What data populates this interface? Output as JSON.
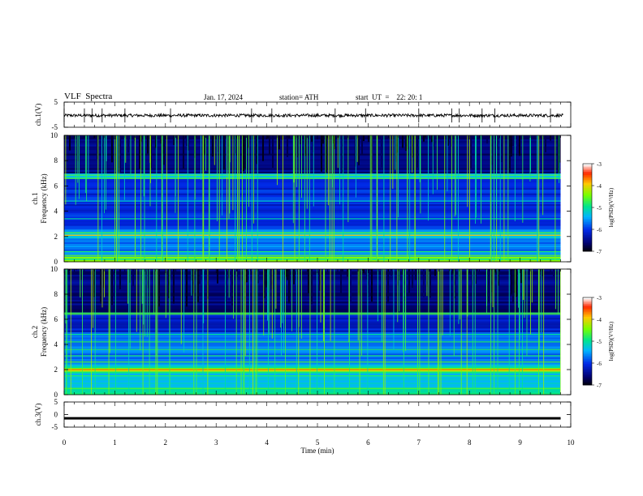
{
  "header": {
    "title": "VLF  Spectra",
    "date": "Jan. 17, 2024",
    "station": "station= ATH",
    "start": "start  UT  =    22: 20: 1"
  },
  "chart_data": [
    {
      "type": "line",
      "panel": "ch1-waveform",
      "ylabel": "ch.1(V)",
      "ylim": [
        -5,
        5
      ],
      "yticks": [
        5,
        -5
      ],
      "baseline_v": -0.3,
      "noise_v": 0.6,
      "spike_min": [
        0.0,
        0.4,
        0.55,
        0.75,
        1.2,
        2.1,
        3.7,
        4.1,
        5.35,
        5.95,
        7.0,
        7.65,
        7.8,
        8.25,
        8.5,
        9.6
      ]
    },
    {
      "type": "heatmap",
      "panel": "ch1-spectrogram",
      "ylabel": "ch.1\nFrequency (kHz)",
      "xlim": [
        0,
        10
      ],
      "ylim": [
        0,
        10
      ],
      "yticks": [
        0,
        2,
        4,
        6,
        8,
        10
      ],
      "data_end_min": 9.8,
      "colorbar": {
        "label": "log(PSD)(V²/Hz)",
        "ticks": [
          -3,
          -4,
          -5,
          -6,
          -7
        ],
        "range": [
          -7,
          -3
        ]
      }
    },
    {
      "type": "heatmap",
      "panel": "ch2-spectrogram",
      "ylabel": "ch.2\nFrequency (kHz)",
      "xlim": [
        0,
        10
      ],
      "ylim": [
        0,
        10
      ],
      "yticks": [
        0,
        2,
        4,
        6,
        8,
        10
      ],
      "data_end_min": 9.8,
      "colorbar": {
        "label": "log(PSD)(V²/Hz)",
        "ticks": [
          -3,
          -4,
          -5,
          -6,
          -7
        ],
        "range": [
          -7,
          -3
        ]
      }
    },
    {
      "type": "line",
      "panel": "ch3-waveform",
      "ylabel": "ch.3(V)",
      "ylim": [
        -5,
        5
      ],
      "yticks": [
        5,
        0,
        -5
      ],
      "constant_v": -1.5,
      "data_end_min": 9.8
    }
  ],
  "xaxis": {
    "label": "Time  (min)",
    "ticks": [
      "0",
      "1",
      "2",
      "3",
      "4",
      "5",
      "6",
      "7",
      "8",
      "9",
      "10"
    ]
  }
}
